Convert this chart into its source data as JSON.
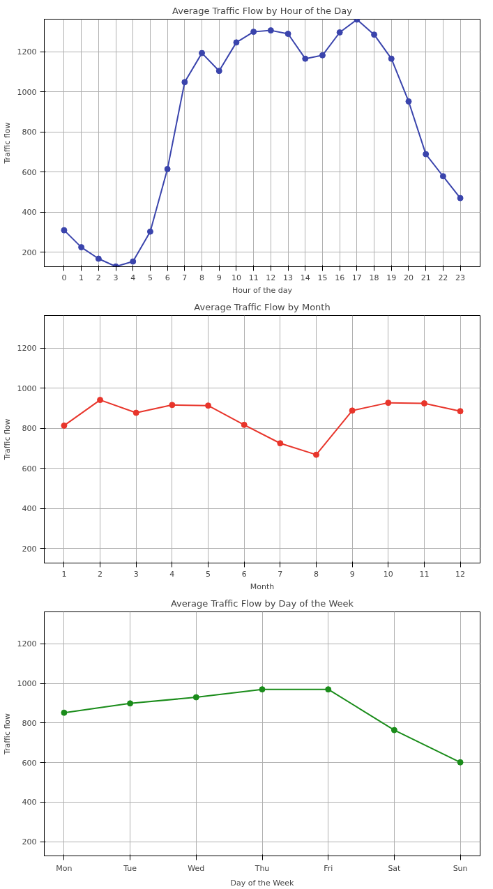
{
  "chart_data": [
    {
      "type": "line",
      "title": "Average Traffic Flow by Hour of the Day",
      "xlabel": "Hour of the day",
      "ylabel": "Traffic flow",
      "x": [
        0,
        1,
        2,
        3,
        4,
        5,
        6,
        7,
        8,
        9,
        10,
        11,
        12,
        13,
        14,
        15,
        16,
        17,
        18,
        19,
        20,
        21,
        22,
        23
      ],
      "series": [
        {
          "color": "#3a44ac",
          "values": [
            310,
            225,
            168,
            129,
            154,
            303,
            615,
            1048,
            1193,
            1104,
            1246,
            1299,
            1306,
            1289,
            1165,
            1182,
            1296,
            1360,
            1285,
            1165,
            952,
            689,
            579,
            470
          ]
        }
      ],
      "xlim": [
        -1.15,
        24.15
      ],
      "xticks": [
        0,
        1,
        2,
        3,
        4,
        5,
        6,
        7,
        8,
        9,
        10,
        11,
        12,
        13,
        14,
        15,
        16,
        17,
        18,
        19,
        20,
        21,
        22,
        23
      ],
      "ylim": [
        128,
        1362
      ],
      "yticks": [
        200,
        400,
        600,
        800,
        1000,
        1200
      ],
      "grid": true,
      "marker": "circle",
      "line_style": "solid"
    },
    {
      "type": "line",
      "title": "Average Traffic Flow by Month",
      "xlabel": "Month",
      "ylabel": "Traffic flow",
      "x": [
        1,
        2,
        3,
        4,
        5,
        6,
        7,
        8,
        9,
        10,
        11,
        12
      ],
      "series": [
        {
          "color": "#e8352b",
          "values": [
            813,
            941,
            877,
            916,
            913,
            817,
            725,
            668,
            888,
            927,
            924,
            885
          ]
        }
      ],
      "xlim": [
        0.45,
        12.55
      ],
      "xticks": [
        1,
        2,
        3,
        4,
        5,
        6,
        7,
        8,
        9,
        10,
        11,
        12
      ],
      "ylim": [
        128,
        1362
      ],
      "yticks": [
        200,
        400,
        600,
        800,
        1000,
        1200
      ],
      "grid": true,
      "marker": "circle",
      "line_style": "solid"
    },
    {
      "type": "line",
      "title": "Average Traffic Flow by Day of the Week",
      "xlabel": "Day of the Week",
      "ylabel": "Traffic flow",
      "categories": [
        "Mon",
        "Tue",
        "Wed",
        "Thu",
        "Fri",
        "Sat",
        "Sun"
      ],
      "series": [
        {
          "color": "#1a8c1a",
          "values": [
            852,
            899,
            930,
            970,
            970,
            764,
            601
          ]
        }
      ],
      "ylim": [
        128,
        1362
      ],
      "yticks": [
        200,
        400,
        600,
        800,
        1000,
        1200
      ],
      "grid": true,
      "marker": "circle",
      "line_style": "solid"
    }
  ]
}
